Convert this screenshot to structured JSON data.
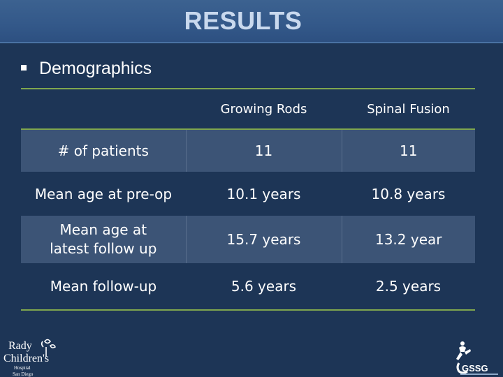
{
  "title": "RESULTS",
  "bullet": "Demographics",
  "table": {
    "headers": [
      "",
      "Growing Rods",
      "Spinal Fusion"
    ],
    "rows": [
      {
        "label_lines": [
          "# of patients"
        ],
        "values": [
          "11",
          "11"
        ]
      },
      {
        "label_lines": [
          "Mean age at pre-op"
        ],
        "values": [
          "10.1 years",
          "10.8 years"
        ]
      },
      {
        "label_lines": [
          "Mean age at",
          "latest follow up"
        ],
        "values": [
          "15.7 years",
          "13.2 year"
        ]
      },
      {
        "label_lines": [
          "Mean follow-up"
        ],
        "values": [
          "5.6 years",
          "2.5 years"
        ]
      }
    ]
  },
  "logos": {
    "left": {
      "lines": [
        "Rady",
        "Children's",
        "Hospital",
        "San Diego"
      ]
    },
    "right": {
      "text": "GSSG"
    }
  },
  "colors": {
    "background": "#1d3556",
    "title_bar": "#34598a",
    "title_text": "#c9d9ee",
    "rule": "#7fa64e",
    "band": "#3c5476"
  }
}
